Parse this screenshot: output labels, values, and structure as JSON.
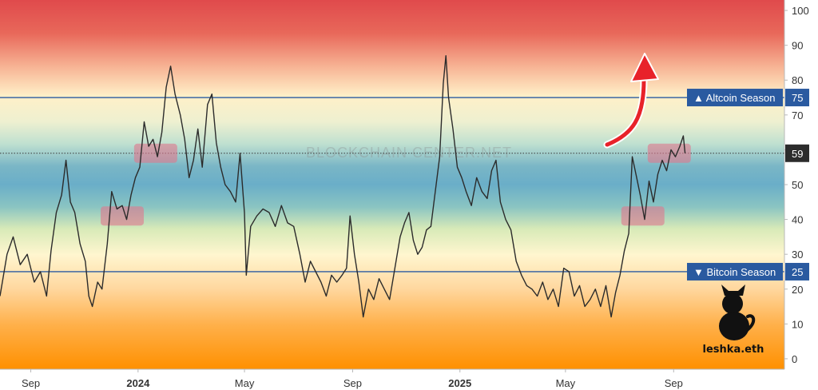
{
  "chart_data": {
    "type": "line",
    "title": "",
    "xlabel": "",
    "ylabel": "",
    "ylim": [
      -3,
      103
    ],
    "y_ticks": [
      "0",
      "10",
      "20",
      "30",
      "40",
      "50",
      "60",
      "70",
      "80",
      "90",
      "100"
    ],
    "x_ticks": [
      {
        "label": "Sep",
        "date": "2023-09-01",
        "bold": false
      },
      {
        "label": "2024",
        "date": "2024-01-01",
        "bold": true
      },
      {
        "label": "May",
        "date": "2024-05-01",
        "bold": false
      },
      {
        "label": "Sep",
        "date": "2024-09-01",
        "bold": false
      },
      {
        "label": "2025",
        "date": "2025-01-01",
        "bold": true
      },
      {
        "label": "May",
        "date": "2025-05-01",
        "bold": false
      },
      {
        "label": "Sep",
        "date": "2025-09-01",
        "bold": false
      }
    ],
    "xlim": [
      "2023-07-28",
      "2026-01-05"
    ],
    "background": "gradient red (top) to blue (middle) to orange (bottom)",
    "grid": false,
    "series": [
      {
        "color": "#2b2b2b",
        "points": [
          [
            "2023-07-28",
            18
          ],
          [
            "2023-08-05",
            30
          ],
          [
            "2023-08-12",
            35
          ],
          [
            "2023-08-20",
            27
          ],
          [
            "2023-08-28",
            30
          ],
          [
            "2023-09-05",
            22
          ],
          [
            "2023-09-12",
            25
          ],
          [
            "2023-09-19",
            18
          ],
          [
            "2023-09-24",
            31
          ],
          [
            "2023-09-30",
            42
          ],
          [
            "2023-10-06",
            47
          ],
          [
            "2023-10-11",
            57
          ],
          [
            "2023-10-16",
            45
          ],
          [
            "2023-10-21",
            42
          ],
          [
            "2023-10-27",
            33
          ],
          [
            "2023-11-02",
            28
          ],
          [
            "2023-11-06",
            18
          ],
          [
            "2023-11-10",
            15
          ],
          [
            "2023-11-16",
            22
          ],
          [
            "2023-11-21",
            20
          ],
          [
            "2023-11-27",
            33
          ],
          [
            "2023-12-02",
            48
          ],
          [
            "2023-12-08",
            43
          ],
          [
            "2023-12-14",
            44
          ],
          [
            "2023-12-19",
            40
          ],
          [
            "2023-12-24",
            47
          ],
          [
            "2023-12-29",
            52
          ],
          [
            "2024-01-03",
            55
          ],
          [
            "2024-01-08",
            68
          ],
          [
            "2024-01-13",
            61
          ],
          [
            "2024-01-18",
            63
          ],
          [
            "2024-01-23",
            58
          ],
          [
            "2024-01-28",
            65
          ],
          [
            "2024-02-02",
            78
          ],
          [
            "2024-02-07",
            84
          ],
          [
            "2024-02-12",
            76
          ],
          [
            "2024-02-18",
            70
          ],
          [
            "2024-02-23",
            63
          ],
          [
            "2024-02-28",
            52
          ],
          [
            "2024-03-04",
            57
          ],
          [
            "2024-03-09",
            66
          ],
          [
            "2024-03-14",
            55
          ],
          [
            "2024-03-20",
            73
          ],
          [
            "2024-03-25",
            76
          ],
          [
            "2024-03-30",
            62
          ],
          [
            "2024-04-04",
            55
          ],
          [
            "2024-04-09",
            50
          ],
          [
            "2024-04-15",
            48
          ],
          [
            "2024-04-21",
            45
          ],
          [
            "2024-04-26",
            59
          ],
          [
            "2024-05-01",
            42
          ],
          [
            "2024-05-03",
            24
          ],
          [
            "2024-05-08",
            38
          ],
          [
            "2024-05-15",
            41
          ],
          [
            "2024-05-22",
            43
          ],
          [
            "2024-05-29",
            42
          ],
          [
            "2024-06-05",
            38
          ],
          [
            "2024-06-12",
            44
          ],
          [
            "2024-06-19",
            39
          ],
          [
            "2024-06-26",
            38
          ],
          [
            "2024-07-03",
            30
          ],
          [
            "2024-07-09",
            22
          ],
          [
            "2024-07-15",
            28
          ],
          [
            "2024-07-21",
            25
          ],
          [
            "2024-07-27",
            22
          ],
          [
            "2024-08-02",
            18
          ],
          [
            "2024-08-08",
            24
          ],
          [
            "2024-08-14",
            22
          ],
          [
            "2024-08-20",
            24
          ],
          [
            "2024-08-25",
            26
          ],
          [
            "2024-08-29",
            41
          ],
          [
            "2024-09-03",
            30
          ],
          [
            "2024-09-08",
            22
          ],
          [
            "2024-09-13",
            12
          ],
          [
            "2024-09-19",
            20
          ],
          [
            "2024-09-25",
            17
          ],
          [
            "2024-10-01",
            23
          ],
          [
            "2024-10-07",
            20
          ],
          [
            "2024-10-13",
            17
          ],
          [
            "2024-10-19",
            26
          ],
          [
            "2024-10-25",
            35
          ],
          [
            "2024-10-30",
            39
          ],
          [
            "2024-11-04",
            42
          ],
          [
            "2024-11-09",
            34
          ],
          [
            "2024-11-14",
            30
          ],
          [
            "2024-11-19",
            32
          ],
          [
            "2024-11-24",
            37
          ],
          [
            "2024-11-29",
            38
          ],
          [
            "2024-12-04",
            48
          ],
          [
            "2024-12-09",
            58
          ],
          [
            "2024-12-13",
            79
          ],
          [
            "2024-12-16",
            87
          ],
          [
            "2024-12-19",
            75
          ],
          [
            "2024-12-24",
            66
          ],
          [
            "2024-12-29",
            55
          ],
          [
            "2025-01-03",
            52
          ],
          [
            "2025-01-08",
            48
          ],
          [
            "2025-01-14",
            44
          ],
          [
            "2025-01-20",
            52
          ],
          [
            "2025-01-26",
            48
          ],
          [
            "2025-02-01",
            46
          ],
          [
            "2025-02-06",
            54
          ],
          [
            "2025-02-11",
            57
          ],
          [
            "2025-02-16",
            45
          ],
          [
            "2025-02-22",
            40
          ],
          [
            "2025-02-28",
            37
          ],
          [
            "2025-03-06",
            28
          ],
          [
            "2025-03-12",
            24
          ],
          [
            "2025-03-18",
            21
          ],
          [
            "2025-03-24",
            20
          ],
          [
            "2025-03-30",
            18
          ],
          [
            "2025-04-05",
            22
          ],
          [
            "2025-04-11",
            17
          ],
          [
            "2025-04-17",
            20
          ],
          [
            "2025-04-23",
            15
          ],
          [
            "2025-04-29",
            26
          ],
          [
            "2025-05-05",
            25
          ],
          [
            "2025-05-11",
            18
          ],
          [
            "2025-05-17",
            21
          ],
          [
            "2025-05-23",
            15
          ],
          [
            "2025-05-29",
            17
          ],
          [
            "2025-06-04",
            20
          ],
          [
            "2025-06-10",
            15
          ],
          [
            "2025-06-16",
            21
          ],
          [
            "2025-06-22",
            12
          ],
          [
            "2025-06-27",
            19
          ],
          [
            "2025-07-02",
            24
          ],
          [
            "2025-07-07",
            31
          ],
          [
            "2025-07-12",
            36
          ],
          [
            "2025-07-16",
            58
          ],
          [
            "2025-07-21",
            52
          ],
          [
            "2025-07-25",
            47
          ],
          [
            "2025-07-30",
            40
          ],
          [
            "2025-08-04",
            51
          ],
          [
            "2025-08-09",
            45
          ],
          [
            "2025-08-14",
            53
          ],
          [
            "2025-08-19",
            57
          ],
          [
            "2025-08-24",
            54
          ],
          [
            "2025-08-29",
            60
          ],
          [
            "2025-09-03",
            58
          ],
          [
            "2025-09-08",
            61
          ],
          [
            "2025-09-12",
            64
          ],
          [
            "2025-09-14",
            59
          ]
        ]
      }
    ],
    "reference_lines": [
      {
        "value": 75,
        "label": "▲ Altcoin Season",
        "value_label": "75",
        "color": "#2a5aa0"
      },
      {
        "value": 25,
        "label": "▼ Bitcoin Season",
        "value_label": "25",
        "color": "#2a5aa0"
      }
    ],
    "current_value": {
      "value": 59,
      "label": "59",
      "color": "#2c2c2c"
    },
    "highlights": [
      {
        "date": "2023-12-14",
        "value": 41
      },
      {
        "date": "2024-01-21",
        "value": 59
      },
      {
        "date": "2025-07-28",
        "value": 41
      },
      {
        "date": "2025-08-27",
        "value": 59
      }
    ],
    "annotations": {
      "arrow": "red curved arrow pointing up toward Altcoin Season",
      "watermark": "BLOCKCHAIN CENTER.NET",
      "brand": "leshka.eth",
      "brand_icon": "black-cat-icon"
    }
  }
}
